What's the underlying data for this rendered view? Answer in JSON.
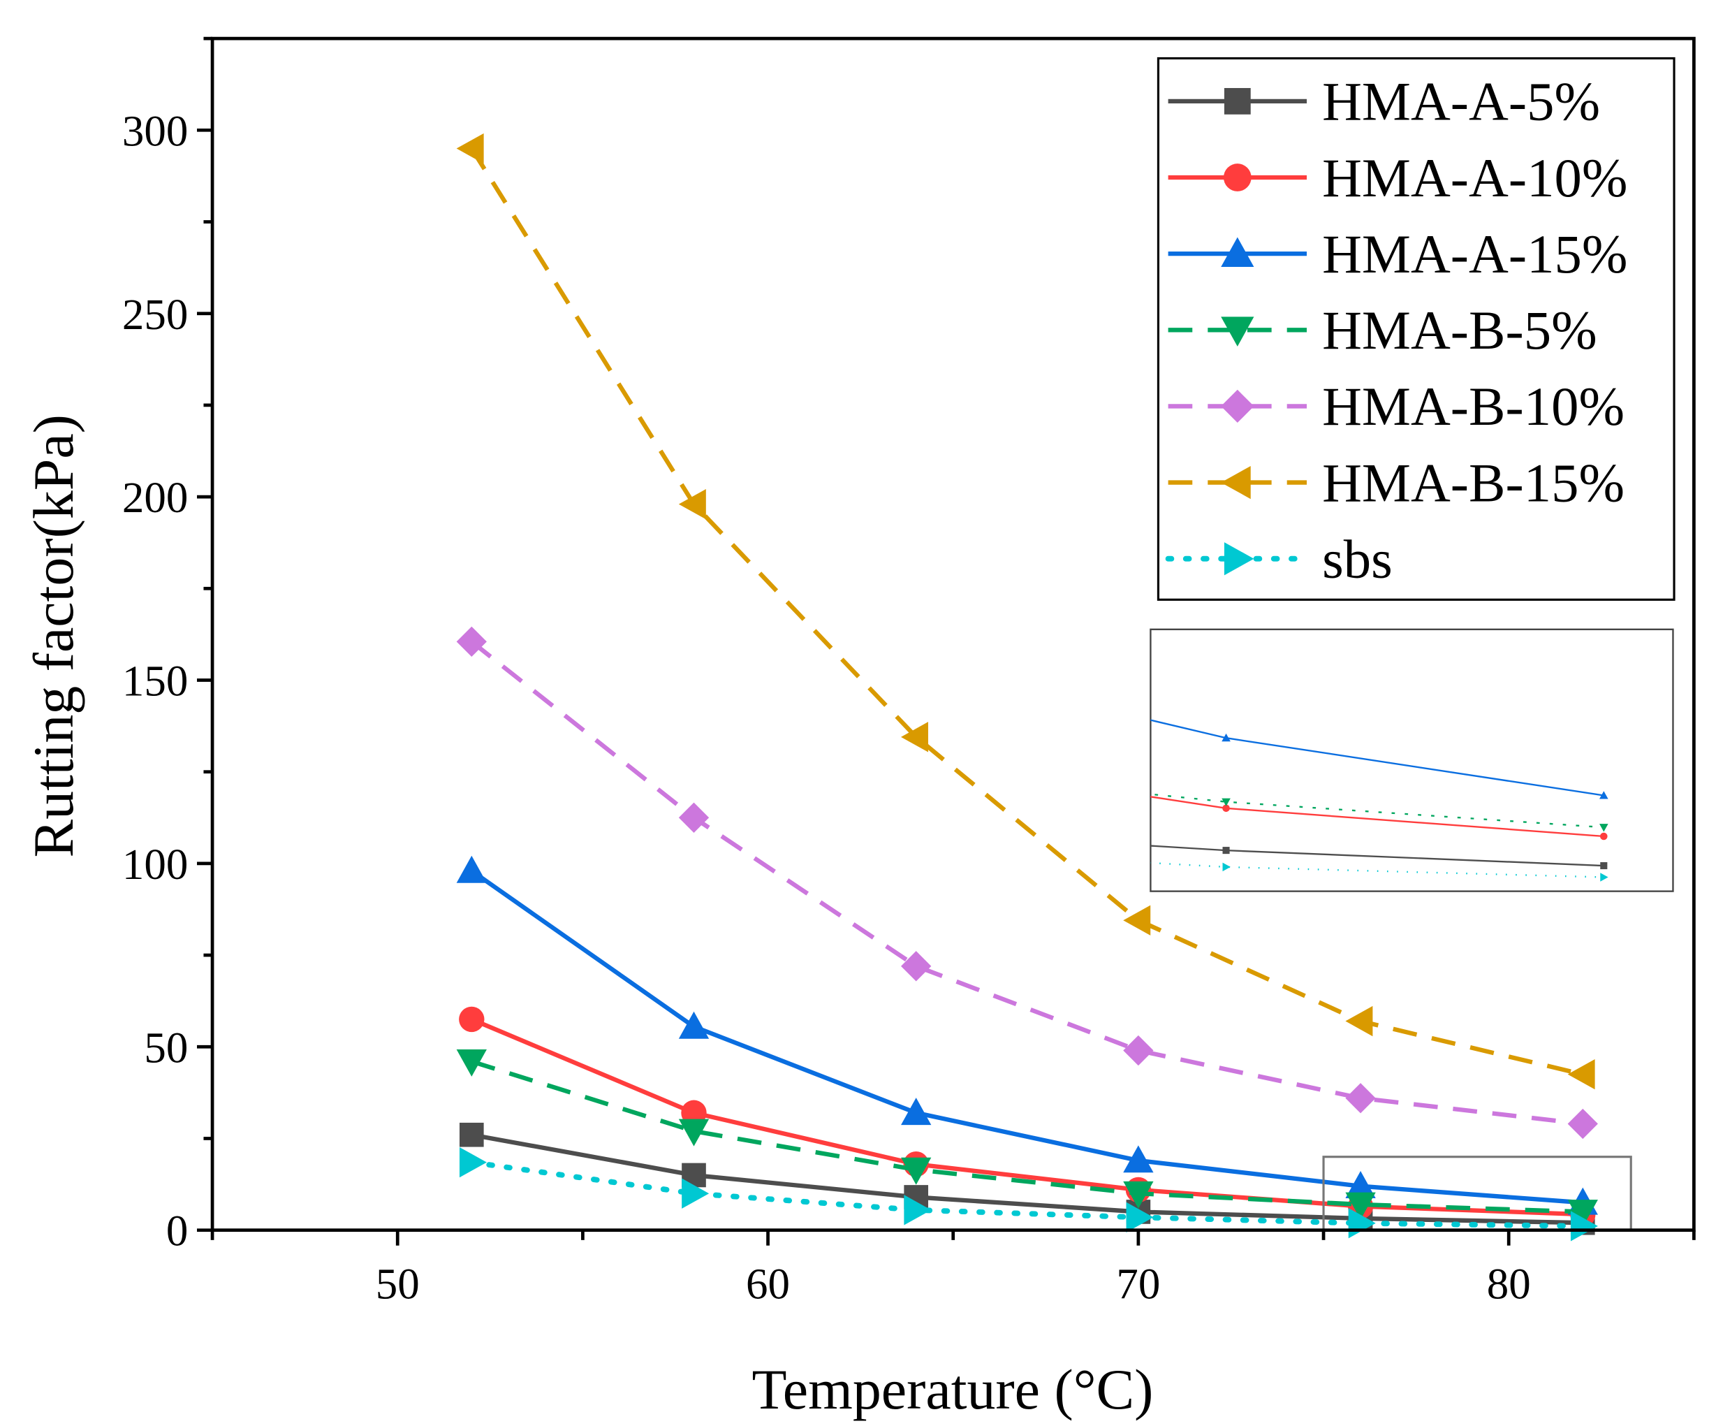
{
  "chart_data": {
    "type": "line",
    "title": "",
    "xlabel": "Temperature (°C)",
    "ylabel": "Rutting factor(kPa)",
    "xlim": [
      45,
      85
    ],
    "ylim": [
      0,
      325
    ],
    "xticks": [
      50,
      60,
      70,
      80
    ],
    "yticks": [
      0,
      50,
      100,
      150,
      200,
      250,
      300
    ],
    "xtick_labels": [
      "50",
      "60",
      "70",
      "80"
    ],
    "ytick_labels": [
      "0",
      "50",
      "100",
      "150",
      "200",
      "250",
      "300"
    ],
    "grid": false,
    "legend_position": "top-right",
    "x": [
      52,
      58,
      64,
      70,
      76,
      82
    ],
    "series": [
      {
        "name": "HMA-A-5%",
        "color": "#4d4d4d",
        "style": "solid",
        "marker": "square",
        "values": [
          26,
          15,
          9,
          5,
          3.2,
          2
        ]
      },
      {
        "name": "HMA-A-10%",
        "color": "#ff3d3d",
        "style": "solid",
        "marker": "circle",
        "values": [
          57.5,
          32,
          18,
          11,
          6.5,
          4.3
        ]
      },
      {
        "name": "HMA-A-15%",
        "color": "#0a6ee0",
        "style": "solid",
        "marker": "triangle-up",
        "values": [
          98,
          55.5,
          32,
          19,
          12,
          7.5
        ]
      },
      {
        "name": "HMA-B-5%",
        "color": "#00a65e",
        "style": "dashed",
        "marker": "triangle-down",
        "values": [
          46,
          27,
          16.5,
          10,
          7,
          5
        ]
      },
      {
        "name": "HMA-B-10%",
        "color": "#cc77dd",
        "style": "dashed",
        "marker": "diamond",
        "values": [
          160.5,
          112.5,
          72,
          49,
          36,
          29
        ]
      },
      {
        "name": "HMA-B-15%",
        "color": "#d99a00",
        "style": "dashed",
        "marker": "triangle-left",
        "values": [
          295,
          198,
          134.5,
          84.5,
          57,
          42.5
        ]
      },
      {
        "name": "sbs",
        "color": "#00c8d2",
        "style": "dotted",
        "marker": "triangle-right",
        "values": [
          18.5,
          10,
          5.5,
          3.5,
          1.9,
          1.1
        ]
      }
    ],
    "inset": {
      "xlim": [
        74.8,
        83.1
      ],
      "ylim": [
        0,
        20.5
      ],
      "zoom_region_x": [
        75,
        83.3
      ],
      "zoom_region_y": [
        0,
        20
      ]
    }
  }
}
